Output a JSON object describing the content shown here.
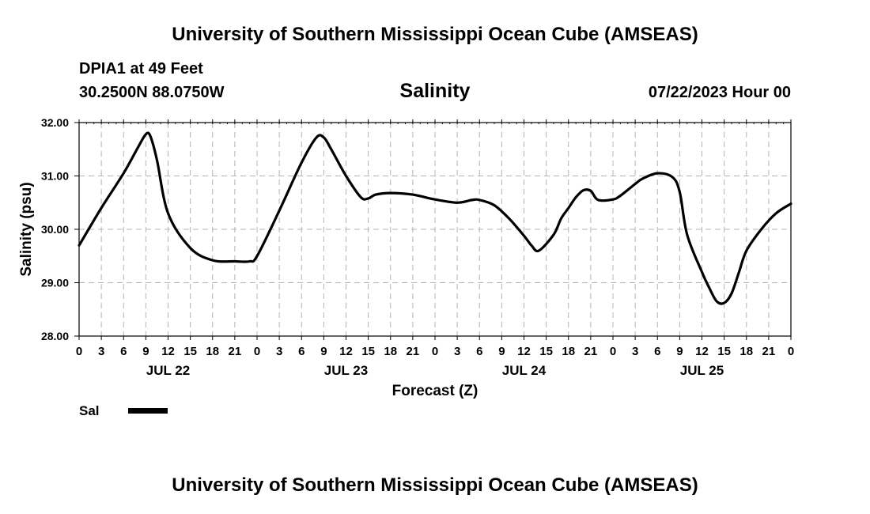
{
  "page": {
    "title_top": "University of Southern Mississippi Ocean Cube (AMSEAS)",
    "title_bottom": "University of Southern Mississippi Ocean Cube (AMSEAS)",
    "station": "DPIA1 at 49 Feet",
    "coordinates": "30.2500N  88.0750W",
    "datetime": "07/22/2023 Hour 00"
  },
  "chart_data": {
    "type": "line",
    "title": "Salinity",
    "xlabel": "Forecast (Z)",
    "ylabel": "Salinity (psu)",
    "ylim": [
      28.0,
      32.0
    ],
    "yticks": [
      "28.00",
      "29.00",
      "30.00",
      "31.00",
      "32.00"
    ],
    "y_tick_values": [
      28,
      29,
      30,
      31,
      32
    ],
    "xlim": [
      0,
      96
    ],
    "x_tick_labels": [
      "0",
      "3",
      "6",
      "9",
      "12",
      "15",
      "18",
      "21",
      "0",
      "3",
      "6",
      "9",
      "12",
      "15",
      "18",
      "21",
      "0",
      "3",
      "6",
      "9",
      "12",
      "15",
      "18",
      "21",
      "0",
      "3",
      "6",
      "9",
      "12",
      "15",
      "18",
      "21",
      "0"
    ],
    "day_labels": [
      {
        "label": "JUL 22",
        "hour": 12
      },
      {
        "label": "JUL 23",
        "hour": 36
      },
      {
        "label": "JUL 24",
        "hour": 60
      },
      {
        "label": "JUL 25",
        "hour": 84
      }
    ],
    "grid": true,
    "legend": [
      {
        "name": "Sal",
        "color": "#000000"
      }
    ],
    "series": [
      {
        "name": "Sal",
        "color": "#000000",
        "x": [
          0,
          3,
          6,
          8,
          9,
          9.6,
          10.5,
          12,
          15,
          18,
          21,
          23,
          24,
          27,
          30,
          32,
          33,
          34,
          36,
          38,
          39,
          40,
          42,
          45,
          48,
          51,
          53,
          54,
          56,
          58,
          60,
          61,
          62,
          64,
          65,
          66,
          67,
          68,
          69,
          70,
          72,
          73,
          75,
          76,
          78,
          80,
          81,
          82,
          84,
          85,
          86,
          87,
          88,
          89,
          90,
          92,
          94,
          96
        ],
        "values": [
          29.7,
          30.4,
          31.05,
          31.55,
          31.78,
          31.75,
          31.3,
          30.3,
          29.65,
          29.42,
          29.4,
          29.4,
          29.5,
          30.35,
          31.25,
          31.72,
          31.72,
          31.5,
          31.0,
          30.6,
          30.58,
          30.65,
          30.68,
          30.65,
          30.56,
          30.5,
          30.55,
          30.55,
          30.45,
          30.2,
          29.88,
          29.7,
          29.6,
          29.9,
          30.2,
          30.4,
          30.6,
          30.73,
          30.72,
          30.55,
          30.56,
          30.63,
          30.85,
          30.95,
          31.05,
          30.98,
          30.7,
          29.9,
          29.2,
          28.9,
          28.65,
          28.62,
          28.8,
          29.2,
          29.6,
          30.0,
          30.3,
          30.48
        ]
      }
    ]
  }
}
